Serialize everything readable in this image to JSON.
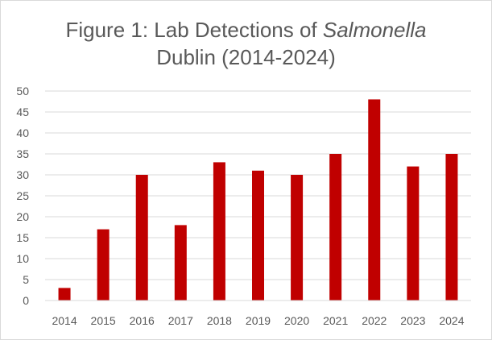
{
  "chart_data": {
    "type": "bar",
    "title": {
      "line1_prefix": "Figure 1: Lab Detections of ",
      "line1_italic": "Salmonella",
      "line2": "Dublin (2014-2024)"
    },
    "categories": [
      "2014",
      "2015",
      "2016",
      "2017",
      "2018",
      "2019",
      "2020",
      "2021",
      "2022",
      "2023",
      "2024"
    ],
    "values": [
      3,
      17,
      30,
      18,
      33,
      31,
      30,
      35,
      48,
      32,
      35
    ],
    "ylim": [
      0,
      50
    ],
    "yticks": [
      0,
      5,
      10,
      15,
      20,
      25,
      30,
      35,
      40,
      45,
      50
    ],
    "grid": true,
    "legend": "none",
    "bar_color": "#c00000",
    "grid_color": "#d9d9d9"
  }
}
